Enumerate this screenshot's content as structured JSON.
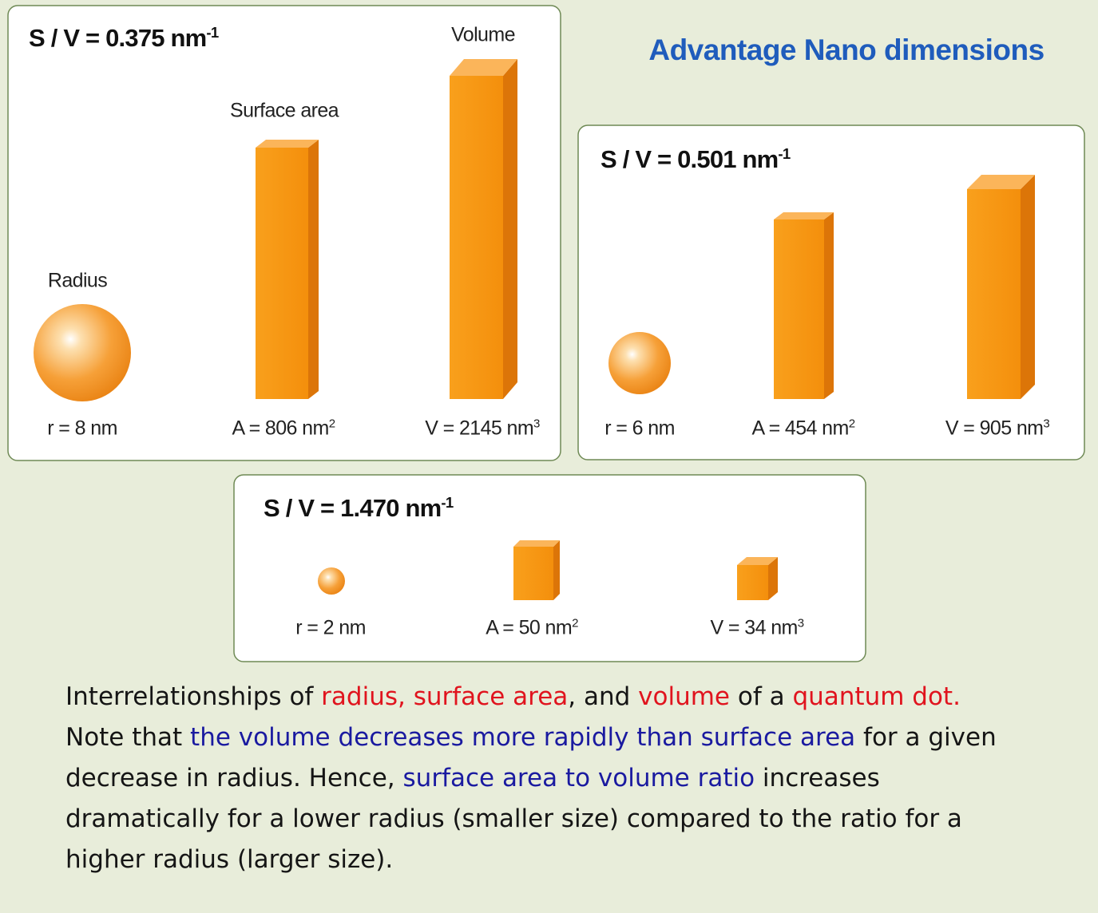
{
  "title": "Advantage Nano dimensions",
  "panels": [
    {
      "ratio": {
        "text": "S / V = 0.375 nm",
        "sup": "-1"
      },
      "shape_labels": [
        "Radius",
        "Surface area",
        "Volume"
      ],
      "radius": {
        "text": "r = 8 nm"
      },
      "area": {
        "text": "A = 806 nm",
        "sup": "2"
      },
      "volume": {
        "text": "V = 2145 nm",
        "sup": "3"
      }
    },
    {
      "ratio": {
        "text": "S / V = 0.501 nm",
        "sup": "-1"
      },
      "radius": {
        "text": "r = 6 nm"
      },
      "area": {
        "text": "A = 454 nm",
        "sup": "2"
      },
      "volume": {
        "text": "V = 905 nm",
        "sup": "3"
      }
    },
    {
      "ratio": {
        "text": "S / V = 1.470 nm",
        "sup": "-1"
      },
      "radius": {
        "text": "r = 2 nm"
      },
      "area": {
        "text": "A = 50 nm",
        "sup": "2"
      },
      "volume": {
        "text": "V = 34 nm",
        "sup": "3"
      }
    }
  ],
  "caption": {
    "segments": [
      {
        "text": "Interrelationships of ",
        "color": "#151515"
      },
      {
        "text": "radius, surface area",
        "color": "#e0141e"
      },
      {
        "text": ", and ",
        "color": "#151515"
      },
      {
        "text": "volume",
        "color": "#e0141e"
      },
      {
        "text": " of a ",
        "color": "#151515"
      },
      {
        "text": "quantum dot.",
        "color": "#e0141e"
      },
      {
        "text": " Note that ",
        "color": "#151515"
      },
      {
        "text": "the volume decreases more rapidly than surface area",
        "color": "#1a1aa0"
      },
      {
        "text": " for a given decrease in radius. Hence, ",
        "color": "#151515"
      },
      {
        "text": "surface area to volume ratio",
        "color": "#1a1aa0"
      },
      {
        "text": " increases dramatically for a lower radius (smaller size) compared to the ratio for a higher radius (larger size).",
        "color": "#151515"
      }
    ]
  }
}
